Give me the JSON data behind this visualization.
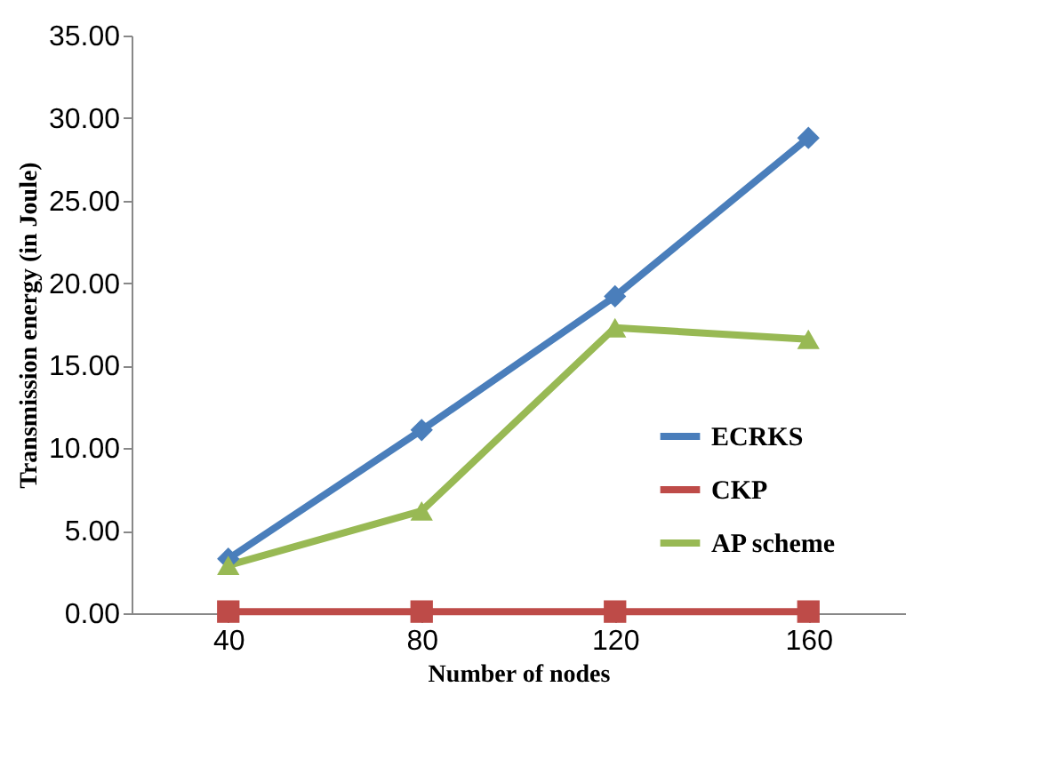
{
  "chart_data": {
    "type": "line",
    "xlabel": "Number of nodes",
    "ylabel": "Transmission energy (in Joule)",
    "categories": [
      "40",
      "80",
      "120",
      "160"
    ],
    "series": [
      {
        "name": "ECRKS",
        "color": "#4a7ebb",
        "marker": "diamond",
        "values": [
          3.3,
          11.1,
          19.2,
          28.8
        ]
      },
      {
        "name": "CKP",
        "color": "#be4b48",
        "marker": "square",
        "values": [
          0.1,
          0.1,
          0.1,
          0.1
        ]
      },
      {
        "name": "AP scheme",
        "color": "#98b954",
        "marker": "triangle",
        "values": [
          2.9,
          6.2,
          17.3,
          16.6
        ]
      }
    ],
    "ylim": [
      0,
      35
    ],
    "yticks": [
      {
        "value": 0,
        "label": "0.00"
      },
      {
        "value": 5,
        "label": "5.00"
      },
      {
        "value": 10,
        "label": "10.00"
      },
      {
        "value": 15,
        "label": "15.00"
      },
      {
        "value": 20,
        "label": "20.00"
      },
      {
        "value": 25,
        "label": "25.00"
      },
      {
        "value": 30,
        "label": "30.00"
      },
      {
        "value": 35,
        "label": "35.00"
      }
    ],
    "grid": false,
    "legend": "right",
    "line_style": "solid"
  }
}
